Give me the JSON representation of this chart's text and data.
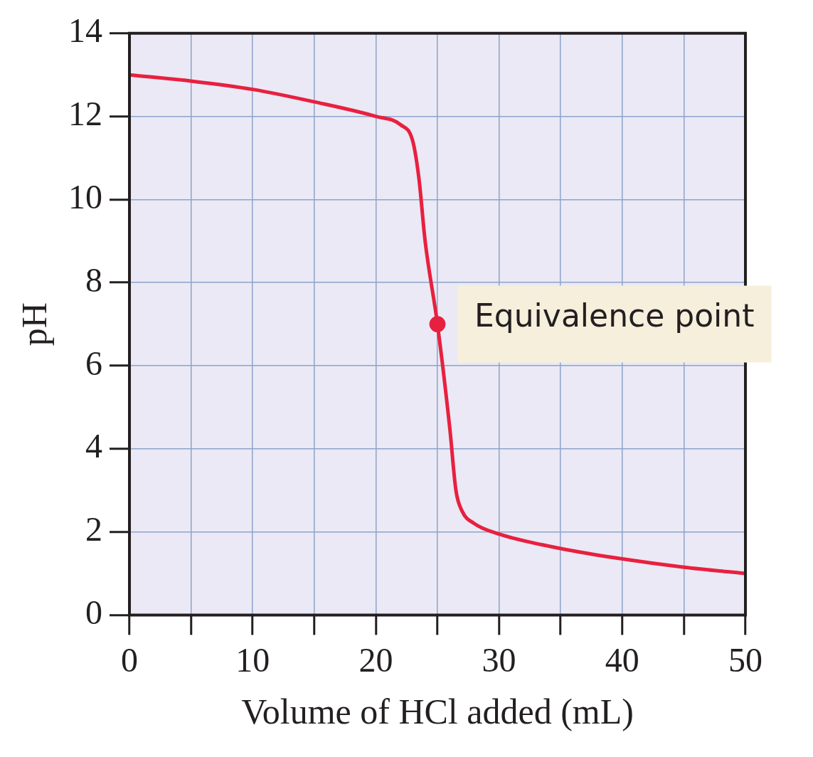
{
  "chart_data": {
    "type": "line",
    "xlabel": "Volume of HCl added (mL)",
    "ylabel": "pH",
    "xlim": [
      0,
      50
    ],
    "ylim": [
      0,
      14
    ],
    "xticks": [
      0,
      {
        "value": 5,
        "label": null
      },
      10,
      {
        "value": 15,
        "label": null
      },
      20,
      {
        "value": 25,
        "label": null
      },
      30,
      {
        "value": 35,
        "label": null
      },
      40,
      {
        "value": 45,
        "label": null
      },
      50
    ],
    "yticks": [
      0,
      2,
      4,
      6,
      8,
      10,
      12,
      14
    ],
    "grid": true,
    "legend": false,
    "series": [
      {
        "type": "line",
        "color": "#e8203f",
        "marker": "none",
        "line_style": "solid",
        "x": [
          0,
          5,
          10,
          15,
          20,
          22,
          23,
          23.5,
          24,
          25,
          26,
          26.5,
          27,
          28,
          30,
          35,
          40,
          45,
          50
        ],
        "values": [
          13.0,
          12.85,
          12.65,
          12.35,
          12.0,
          11.8,
          11.4,
          10.5,
          9,
          7,
          4.5,
          3,
          2.5,
          2.2,
          1.95,
          1.6,
          1.35,
          1.15,
          1.0
        ]
      },
      {
        "type": "scatter",
        "color": "#e8203f",
        "marker": "circle",
        "x": [
          25
        ],
        "values": [
          7
        ]
      }
    ],
    "annotations": [
      {
        "text": "Equivalence point",
        "x": 25,
        "y": 7
      }
    ]
  }
}
